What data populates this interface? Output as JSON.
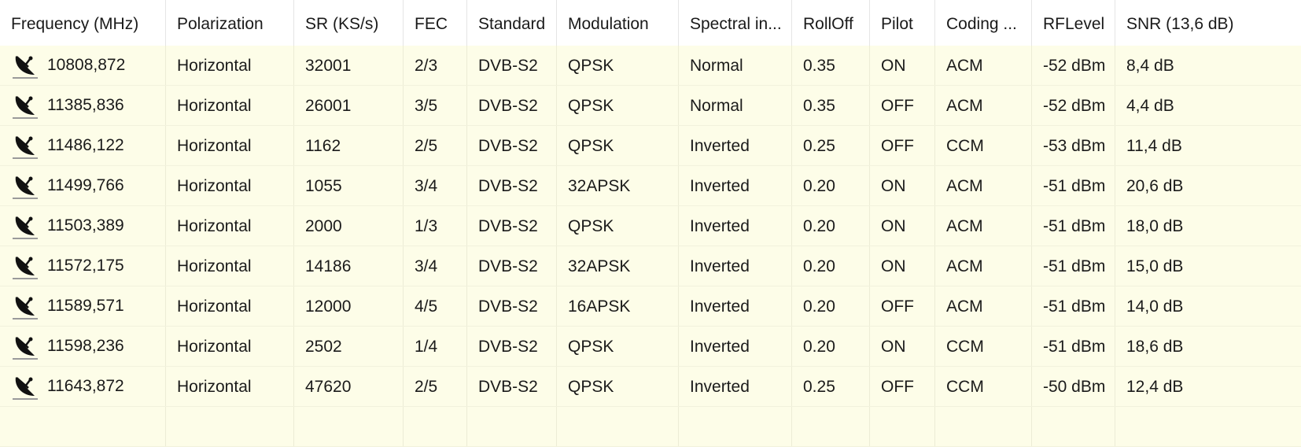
{
  "columns": [
    "Frequency (MHz)",
    "Polarization",
    "SR (KS/s)",
    "FEC",
    "Standard",
    "Modulation",
    "Spectral in...",
    "RollOff",
    "Pilot",
    "Coding ...",
    "RFLevel",
    "SNR (13,6 dB)"
  ],
  "row_icon": "satellite-dish-icon",
  "rows": [
    [
      "10808,872",
      "Horizontal",
      "32001",
      "2/3",
      "DVB-S2",
      "QPSK",
      "Normal",
      "0.35",
      "ON",
      "ACM",
      "-52 dBm",
      "8,4 dB"
    ],
    [
      "11385,836",
      "Horizontal",
      "26001",
      "3/5",
      "DVB-S2",
      "QPSK",
      "Normal",
      "0.35",
      "OFF",
      "ACM",
      "-52 dBm",
      "4,4 dB"
    ],
    [
      "11486,122",
      "Horizontal",
      "1162",
      "2/5",
      "DVB-S2",
      "QPSK",
      "Inverted",
      "0.25",
      "OFF",
      "CCM",
      "-53 dBm",
      "11,4 dB"
    ],
    [
      "11499,766",
      "Horizontal",
      "1055",
      "3/4",
      "DVB-S2",
      "32APSK",
      "Inverted",
      "0.20",
      "ON",
      "ACM",
      "-51 dBm",
      "20,6 dB"
    ],
    [
      "11503,389",
      "Horizontal",
      "2000",
      "1/3",
      "DVB-S2",
      "QPSK",
      "Inverted",
      "0.20",
      "ON",
      "ACM",
      "-51 dBm",
      "18,0 dB"
    ],
    [
      "11572,175",
      "Horizontal",
      "14186",
      "3/4",
      "DVB-S2",
      "32APSK",
      "Inverted",
      "0.20",
      "ON",
      "ACM",
      "-51 dBm",
      "15,0 dB"
    ],
    [
      "11589,571",
      "Horizontal",
      "12000",
      "4/5",
      "DVB-S2",
      "16APSK",
      "Inverted",
      "0.20",
      "OFF",
      "ACM",
      "-51 dBm",
      "14,0 dB"
    ],
    [
      "11598,236",
      "Horizontal",
      "2502",
      "1/4",
      "DVB-S2",
      "QPSK",
      "Inverted",
      "0.20",
      "ON",
      "CCM",
      "-51 dBm",
      "18,6 dB"
    ],
    [
      "11643,872",
      "Horizontal",
      "47620",
      "2/5",
      "DVB-S2",
      "QPSK",
      "Inverted",
      "0.25",
      "OFF",
      "CCM",
      "-50 dBm",
      "12,4 dB"
    ]
  ]
}
